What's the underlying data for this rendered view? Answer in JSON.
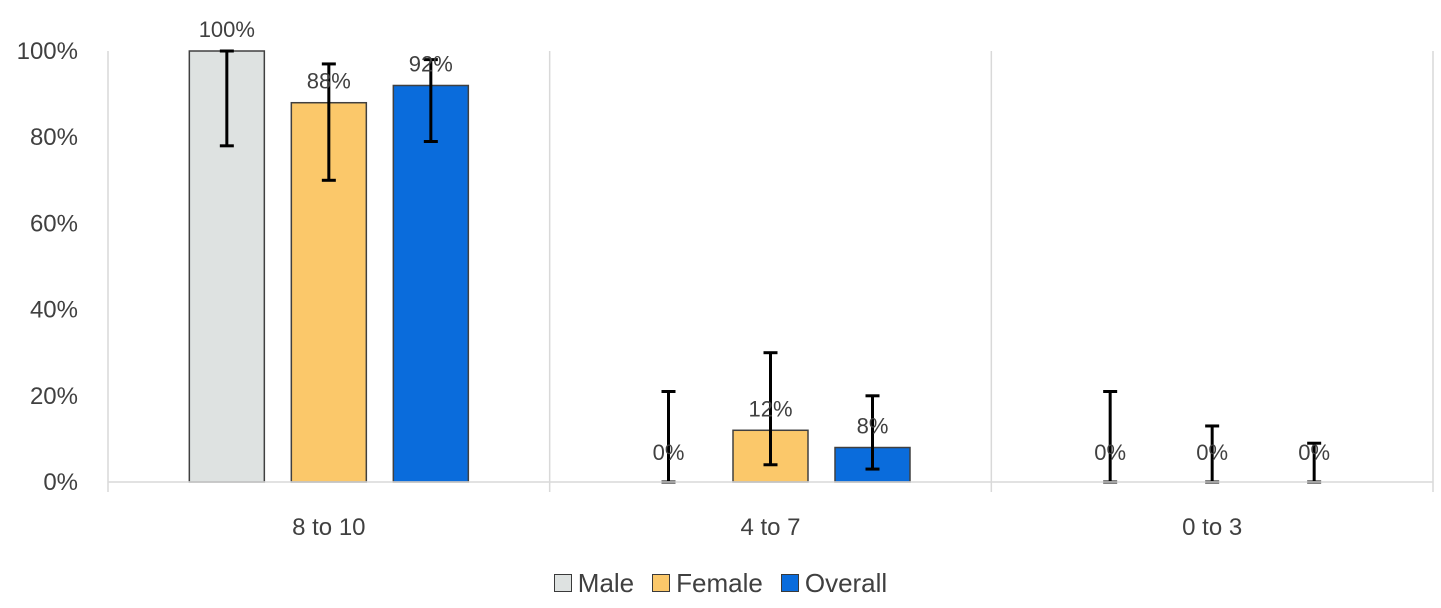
{
  "chart_data": {
    "type": "bar",
    "categories": [
      "8 to 10",
      "4 to 7",
      "0 to 3"
    ],
    "series": [
      {
        "name": "Male",
        "color": "#DEE2E1",
        "values": [
          100,
          0,
          0
        ],
        "labels": [
          "100%",
          "0%",
          "0%"
        ],
        "error_low": [
          78,
          0,
          0
        ],
        "error_high": [
          100,
          21,
          21
        ]
      },
      {
        "name": "Female",
        "color": "#FBC86A",
        "values": [
          88,
          12,
          0
        ],
        "labels": [
          "88%",
          "12%",
          "0%"
        ],
        "error_low": [
          70,
          4,
          0
        ],
        "error_high": [
          97,
          30,
          13
        ]
      },
      {
        "name": "Overall",
        "color": "#0A6CDC",
        "values": [
          92,
          8,
          0
        ],
        "labels": [
          "92%",
          "8%",
          "0%"
        ],
        "error_low": [
          79,
          3,
          0
        ],
        "error_high": [
          98,
          20,
          9
        ]
      }
    ],
    "y_ticks": [
      "0%",
      "20%",
      "40%",
      "60%",
      "80%",
      "100%"
    ],
    "ylim": [
      0,
      100
    ],
    "grid": true,
    "legend_position": "bottom"
  }
}
